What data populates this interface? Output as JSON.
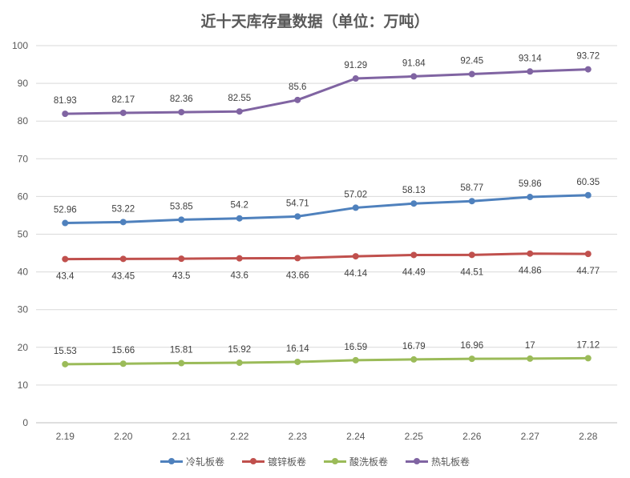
{
  "chart_data": {
    "type": "line",
    "title": "近十天库存量数据（单位：万吨）",
    "categories": [
      "2.19",
      "2.20",
      "2.21",
      "2.22",
      "2.23",
      "2.24",
      "2.25",
      "2.26",
      "2.27",
      "2.28"
    ],
    "ylim": [
      0,
      100
    ],
    "yticks": [
      0,
      10,
      20,
      30,
      40,
      50,
      60,
      70,
      80,
      90,
      100
    ],
    "grid": true,
    "legend_position": "bottom",
    "series": [
      {
        "name": "冷轧板卷",
        "color": "#4F81BD",
        "label_position": "above",
        "values": [
          52.96,
          53.22,
          53.85,
          54.2,
          54.71,
          57.02,
          58.13,
          58.77,
          59.86,
          60.35
        ],
        "labels": [
          "52.96",
          "53.22",
          "53.85",
          "54.2",
          "54.71",
          "57.02",
          "58.13",
          "58.77",
          "59.86",
          "60.35"
        ]
      },
      {
        "name": "镀锌板卷",
        "color": "#C0504D",
        "label_position": "below",
        "values": [
          43.4,
          43.45,
          43.5,
          43.6,
          43.66,
          44.14,
          44.49,
          44.51,
          44.86,
          44.77
        ],
        "labels": [
          "43.4",
          "43.45",
          "43.5",
          "43.6",
          "43.66",
          "44.14",
          "44.49",
          "44.51",
          "44.86",
          "44.77"
        ]
      },
      {
        "name": "酸洗板卷",
        "color": "#9BBB59",
        "label_position": "above",
        "values": [
          15.53,
          15.66,
          15.81,
          15.92,
          16.14,
          16.59,
          16.79,
          16.96,
          17,
          17.12
        ],
        "labels": [
          "15.53",
          "15.66",
          "15.81",
          "15.92",
          "16.14",
          "16.59",
          "16.79",
          "16.96",
          "17",
          "17.12"
        ]
      },
      {
        "name": "热轧板卷",
        "color": "#8064A2",
        "label_position": "above",
        "values": [
          81.93,
          82.17,
          82.36,
          82.55,
          85.6,
          91.29,
          91.84,
          92.45,
          93.14,
          93.72
        ],
        "labels": [
          "81.93",
          "82.17",
          "82.36",
          "82.55",
          "85.6",
          "91.29",
          "91.84",
          "92.45",
          "93.14",
          "93.72"
        ]
      }
    ]
  }
}
